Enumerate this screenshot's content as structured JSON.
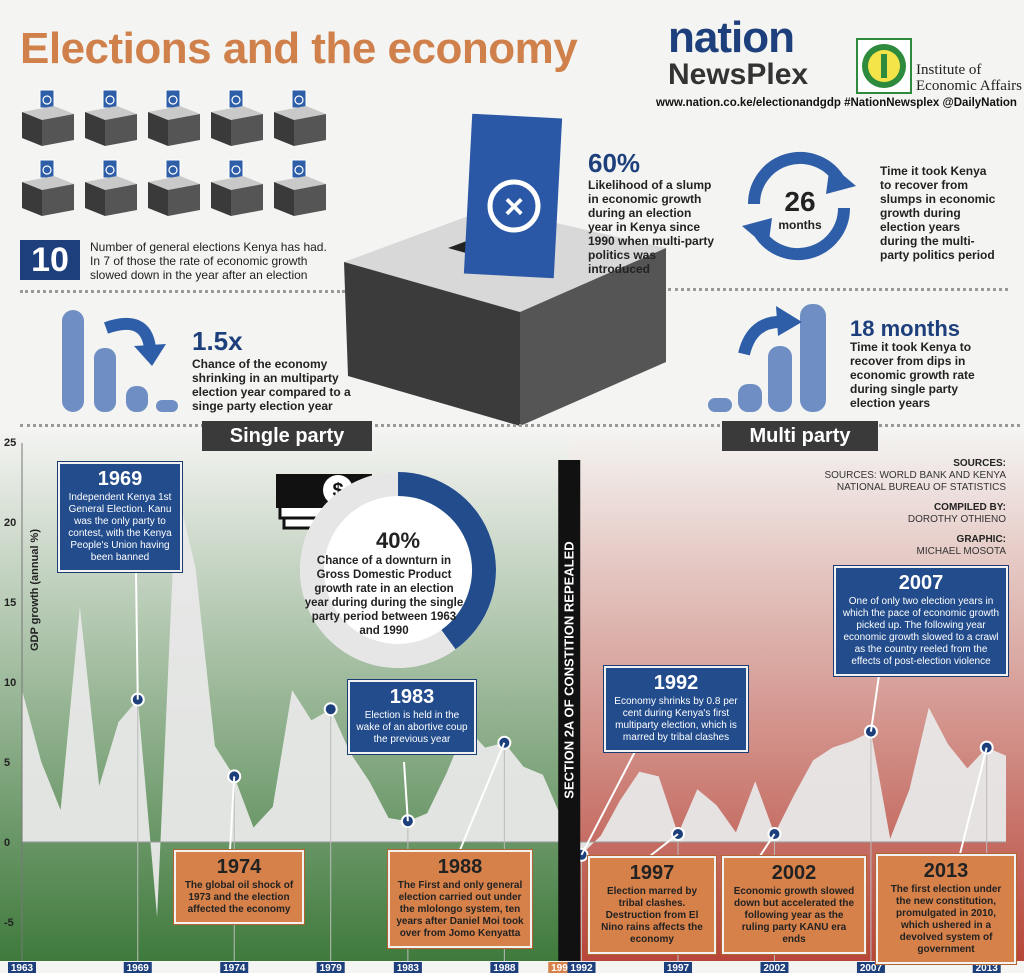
{
  "header": {
    "title": "Elections and the economy",
    "logo_nation": "nation",
    "logo_newsplex": "NewsPlex",
    "iea_line1": "Institute of",
    "iea_line2": "Economic Affairs",
    "urls": "www.nation.co.ke/electionandgdp #NationNewsplex @DailyNation"
  },
  "stats": {
    "elections_num": "10",
    "elections_text": "Number of general elections Kenya has had. In 7 of those the  rate of economic growth slowed down in the year after an election",
    "slump_pct": "60%",
    "slump_text": "Likelihood of a slump in economic growth during an election year in Kenya since 1990 when multi-party politics was introduced",
    "recover_num": "26",
    "recover_unit": "months",
    "recover_text": "Time it took Kenya to recover from slumps in economic growth during election years during the multi-party politics period",
    "shrink_mult": "1.5x",
    "shrink_text": "Chance of the economy shrinking in an multiparty election year compared to a singe party election year",
    "recover_single": "18 months",
    "recover_single_text": "Time it took Kenya to recover from dips in economic growth  rate during single party election years",
    "downturn_pct": "40%",
    "downturn_text": "Chance of a downturn in Gross Domestic Product growth rate in an election year during during the single party period between 1963 and 1990"
  },
  "eras": {
    "single": "Single party",
    "multi": "Multi party",
    "divider": "SECTION 2A OF CONSTITION REPEALED"
  },
  "sources": {
    "label": "SOURCES:",
    "text": "SOURCES: WORLD BANK AND KENYA NATIONAL BUREAU OF STATISTICS",
    "compiled_label": "COMPILED BY:",
    "compiled": "DOROTHY OTHIENO",
    "graphic_label": "GRAPHIC:",
    "graphic": "MICHAEL MOSOTA"
  },
  "callouts": {
    "c1969": {
      "year": "1969",
      "text": "Independent Kenya 1st General Election. Kanu was the only party to contest, with the Kenya People's Union having been banned"
    },
    "c1974": {
      "year": "1974",
      "text": "The global oil shock of 1973 and the election affected the economy"
    },
    "c1983": {
      "year": "1983",
      "text": "Election is held in the wake of an abortive coup the previous year"
    },
    "c1988": {
      "year": "1988",
      "text": "The First and only general election carried out under the mlolongo system, ten years after Daniel Moi took over from Jomo Kenyatta"
    },
    "c1992": {
      "year": "1992",
      "text": "Economy shrinks by 0.8 per cent during Kenya's first multiparty election, which is marred by tribal clashes"
    },
    "c1997": {
      "year": "1997",
      "text": "Election marred by tribal clashes. Destruction from El Nino rains affects the economy"
    },
    "c2002": {
      "year": "2002",
      "text": "Economic growth slowed down but accelerated the following year as the ruling party KANU era ends"
    },
    "c2007": {
      "year": "2007",
      "text": "One of only two election years in which the pace of economic growth picked up. The following year economic growth slowed to a crawl as the country reeled from the effects of post-election violence"
    },
    "c2013": {
      "year": "2013",
      "text": "The first election under the new constitution, promulgated in 2010, which ushered in a devolved system of government"
    }
  },
  "chart_data": {
    "type": "area",
    "ylabel": "GDP growth (annual %)",
    "ylim": [
      -8,
      25
    ],
    "yticks": [
      "25",
      "20",
      "15",
      "10",
      "5",
      "0",
      "-5"
    ],
    "xticks": [
      "1963",
      "1969",
      "1974",
      "1979",
      "1983",
      "1988",
      "1991",
      "1992",
      "1997",
      "2002",
      "2007",
      "2013"
    ],
    "x": [
      1963,
      1964,
      1965,
      1966,
      1967,
      1968,
      1969,
      1970,
      1971,
      1972,
      1973,
      1974,
      1975,
      1976,
      1977,
      1978,
      1979,
      1980,
      1981,
      1982,
      1983,
      1984,
      1985,
      1986,
      1987,
      1988,
      1989,
      1990,
      1991,
      1992,
      1993,
      1994,
      1995,
      1996,
      1997,
      1998,
      1999,
      2000,
      2001,
      2002,
      2003,
      2004,
      2005,
      2006,
      2007,
      2008,
      2009,
      2010,
      2011,
      2012,
      2013,
      2014
    ],
    "y": [
      9.5,
      5.0,
      2.0,
      14.7,
      3.5,
      7.5,
      8.9,
      -4.7,
      22.2,
      17.1,
      6.0,
      4.1,
      0.9,
      2.2,
      9.5,
      7.6,
      8.3,
      5.6,
      3.8,
      1.5,
      1.3,
      1.8,
      4.3,
      7.2,
      5.9,
      6.2,
      4.7,
      4.2,
      1.4,
      -0.8,
      0.4,
      2.6,
      4.4,
      4.1,
      0.5,
      3.3,
      2.3,
      0.6,
      3.8,
      0.5,
      2.9,
      5.1,
      5.9,
      6.3,
      6.9,
      0.2,
      3.3,
      8.4,
      6.1,
      4.6,
      5.9,
      5.4
    ],
    "election_years": [
      1969,
      1974,
      1979,
      1983,
      1988,
      1992,
      1997,
      2002,
      2007,
      2013
    ],
    "colors": {
      "single_bg": "#3f7a3c",
      "multi_bg": "#b8463a",
      "area": "#e8e8e8",
      "blue": "#224c8c",
      "orange": "#d6814a"
    }
  }
}
